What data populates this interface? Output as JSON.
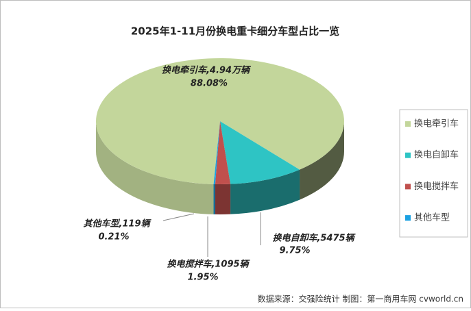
{
  "chart_data": {
    "type": "pie3d",
    "title": "2025年1-11月份换电重卡细分车型占比一览",
    "categories": [
      "换电牵引车",
      "换电自卸车",
      "换电搅拌车",
      "其他车型"
    ],
    "values": [
      88.08,
      9.75,
      1.95,
      0.21
    ],
    "value_labels": [
      "88.08%",
      "9.75%",
      "1.95%",
      "0.21%"
    ],
    "annotations": [
      "换电牵引车,4.94万辆",
      "换电自卸车,5475辆",
      "换电搅拌车,1095辆",
      "其他车型,119辆"
    ],
    "colors": [
      "#c3d69b",
      "#2ec4c4",
      "#c0504d",
      "#1ba1e2"
    ],
    "legend": "right",
    "source": "数据来源：交强险统计  制图：第一商用车网 cvworld.cn"
  }
}
